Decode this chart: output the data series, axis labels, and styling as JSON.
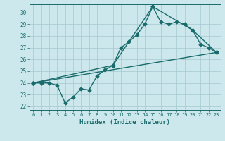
{
  "xlabel": "Humidex (Indice chaleur)",
  "bg_color": "#cce8ec",
  "grid_color": "#aacdd4",
  "line_color": "#1a6b6b",
  "xlim": [
    -0.5,
    23.5
  ],
  "ylim": [
    21.7,
    30.7
  ],
  "xticks": [
    0,
    1,
    2,
    3,
    4,
    5,
    6,
    7,
    8,
    9,
    10,
    11,
    12,
    13,
    14,
    15,
    16,
    17,
    18,
    19,
    20,
    21,
    22,
    23
  ],
  "yticks": [
    22,
    23,
    24,
    25,
    26,
    27,
    28,
    29,
    30
  ],
  "line1_x": [
    0,
    1,
    2,
    3,
    4,
    5,
    6,
    7,
    8,
    9,
    10,
    11,
    12,
    13,
    14,
    15,
    16,
    17,
    18,
    19,
    20,
    21,
    22,
    23
  ],
  "line1_y": [
    24.0,
    24.0,
    24.0,
    23.8,
    22.3,
    22.8,
    23.5,
    23.4,
    24.6,
    25.1,
    25.5,
    27.0,
    27.5,
    28.1,
    29.0,
    30.5,
    29.2,
    29.0,
    29.2,
    29.0,
    28.5,
    27.3,
    27.0,
    26.6
  ],
  "line2_x": [
    0,
    23
  ],
  "line2_y": [
    24.0,
    26.6
  ],
  "line3_x": [
    0,
    10,
    15,
    20,
    23
  ],
  "line3_y": [
    24.0,
    25.5,
    30.5,
    28.5,
    26.6
  ],
  "marker": "D",
  "markersize": 2.5,
  "linewidth": 1.0
}
